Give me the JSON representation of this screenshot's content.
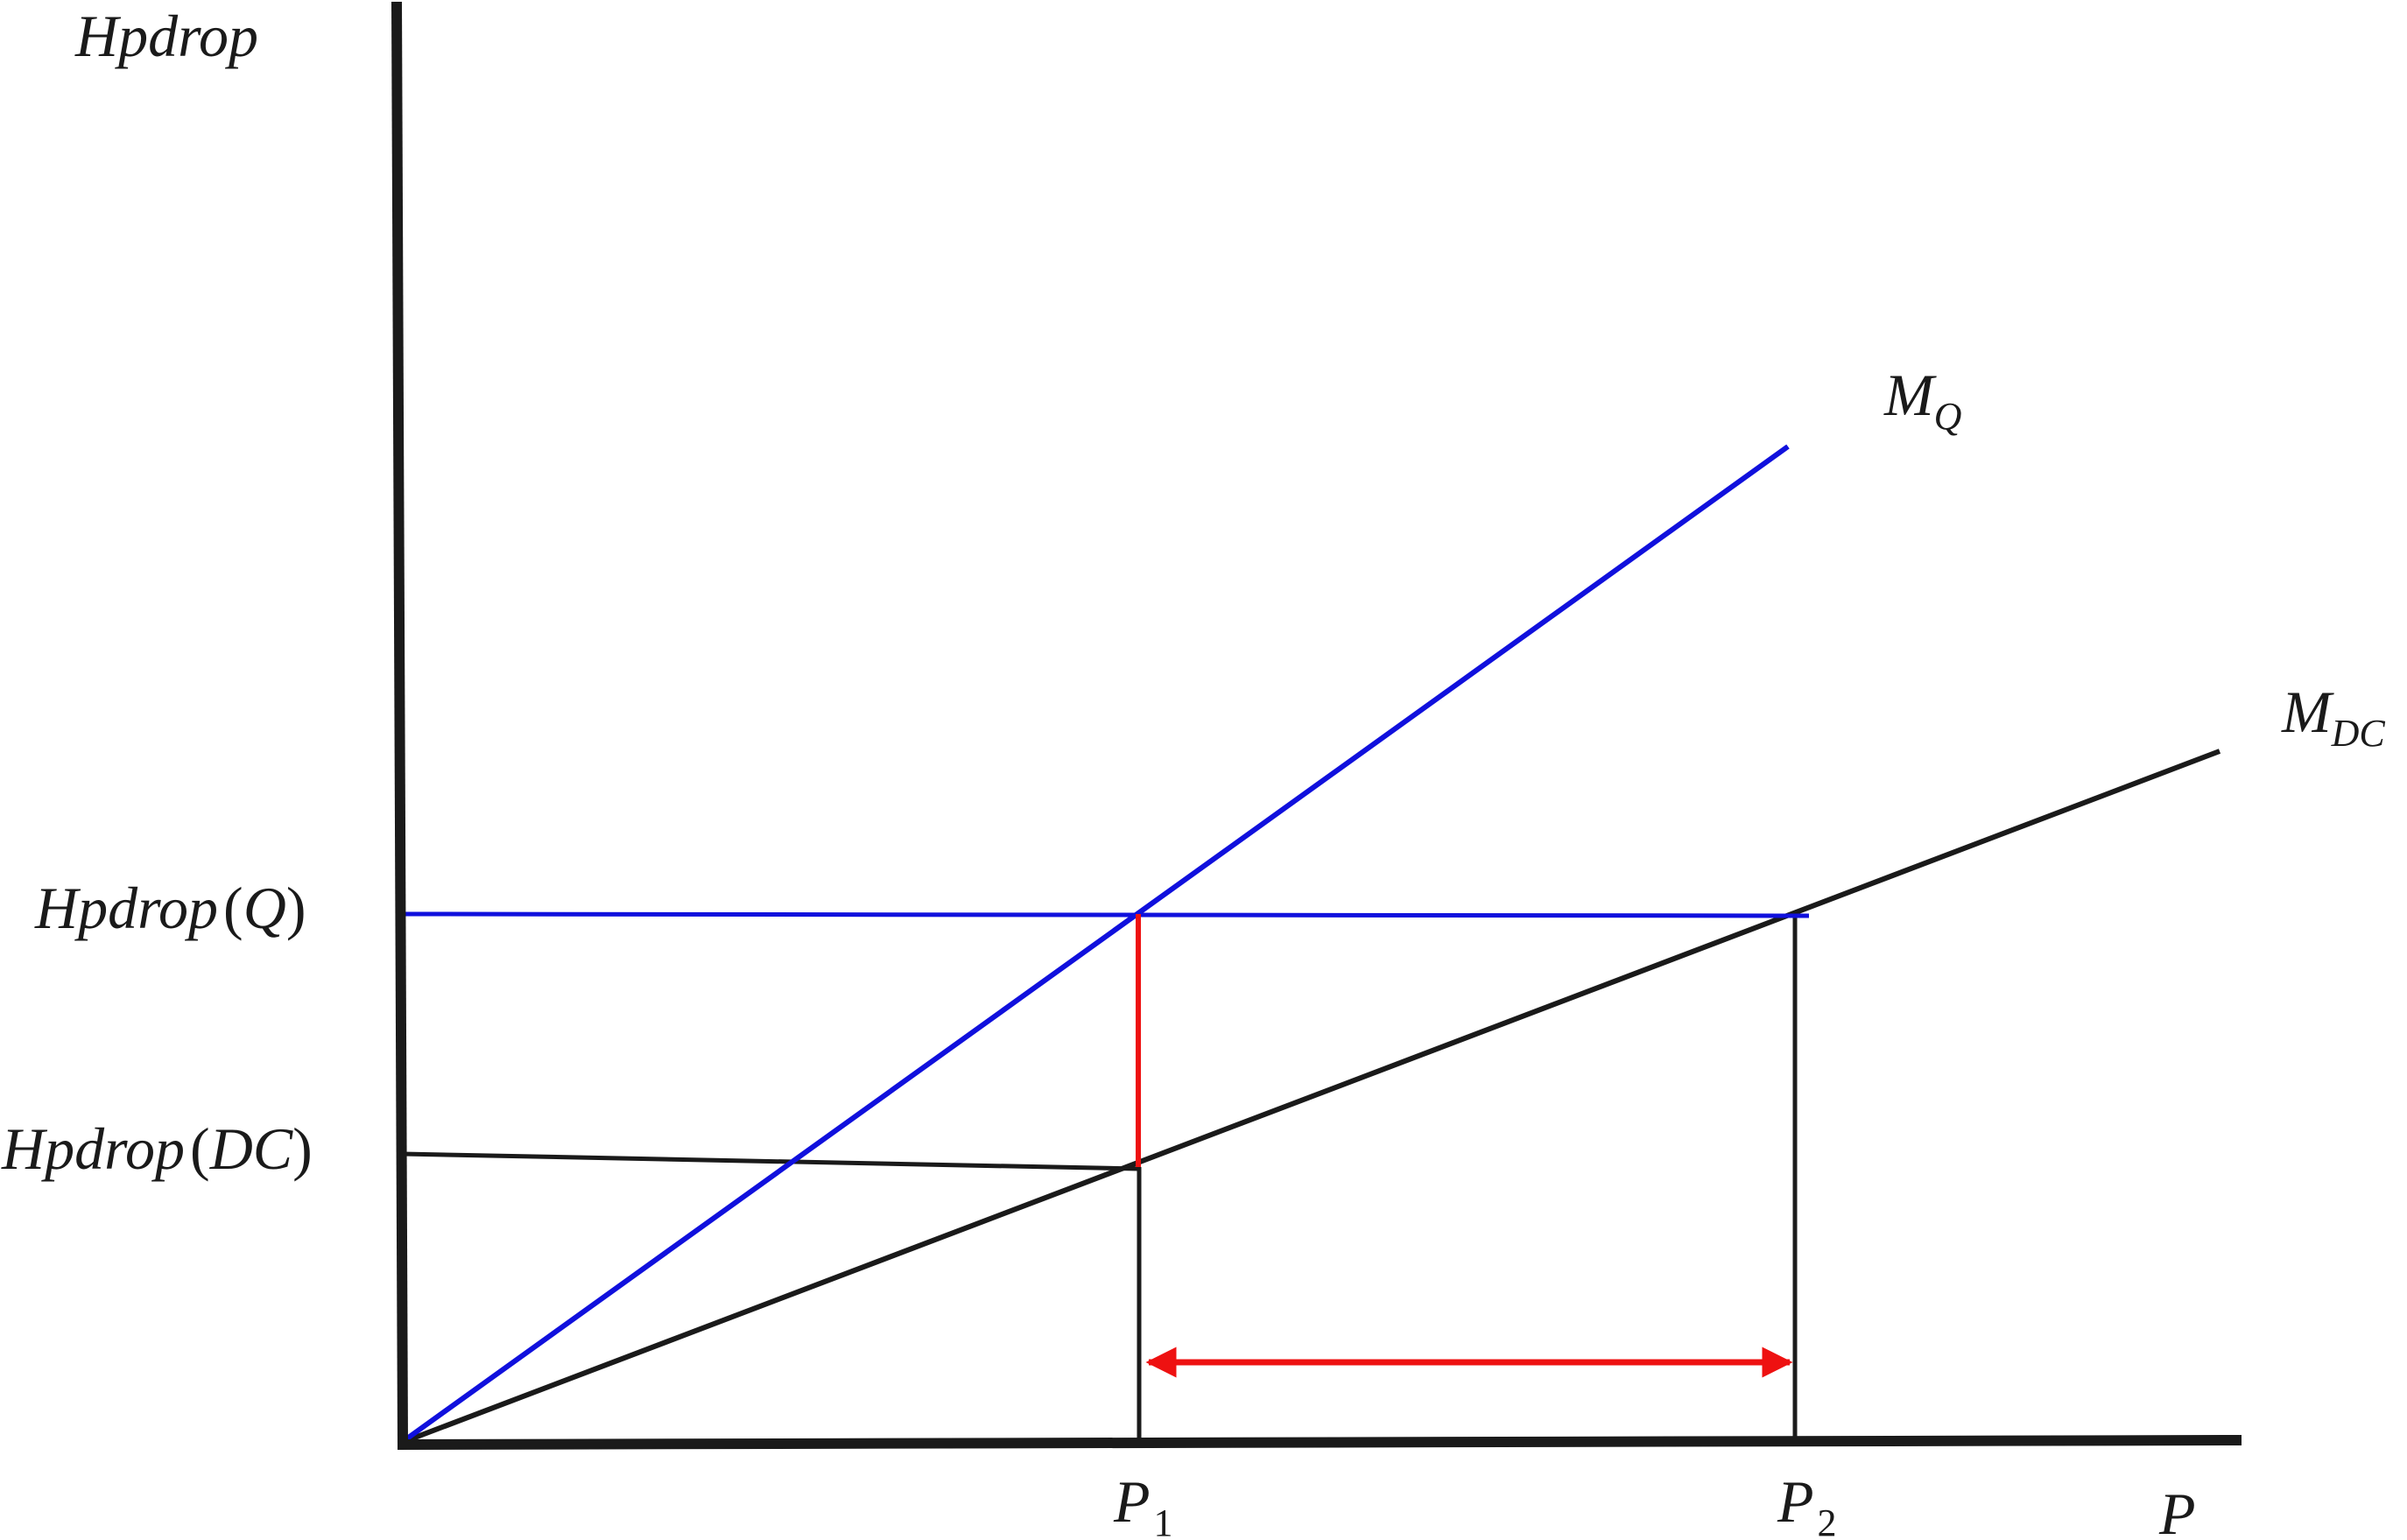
{
  "labels": {
    "y_axis": "Hpdrop",
    "x_axis": "P",
    "line_q": {
      "main": "M",
      "sub": "Q"
    },
    "line_dc": {
      "main": "M",
      "sub": "DC"
    },
    "hq": {
      "main": "Hpdrop",
      "open": "(",
      "arg": "Q",
      "close": ")"
    },
    "hdc": {
      "main": "Hpdrop",
      "open": "(",
      "arg": "DC",
      "close": ")"
    },
    "p1": {
      "main": "P",
      "sub": "1"
    },
    "p2": {
      "main": "P",
      "sub": "2"
    }
  },
  "colors": {
    "axis": "#1a1a1a",
    "line_q": "#1010dd",
    "line_dc": "#1a1a1a",
    "gap": "#ee1111"
  }
}
